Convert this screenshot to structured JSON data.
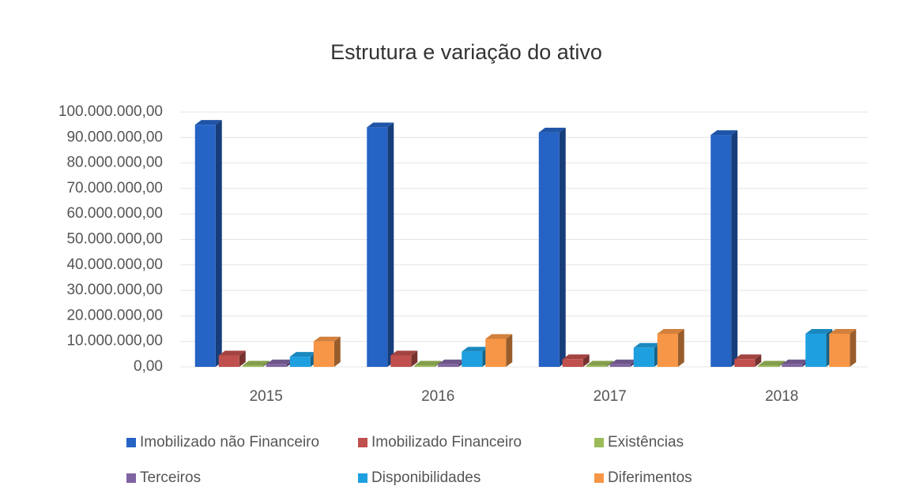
{
  "chart_data": {
    "type": "bar3d",
    "title": "Estrutura e variação do ativo",
    "categories": [
      "2015",
      "2016",
      "2017",
      "2018"
    ],
    "series": [
      {
        "name": "Imobilizado não Financeiro",
        "color": "#2563c4",
        "values": [
          95000000,
          94000000,
          92000000,
          91000000
        ]
      },
      {
        "name": "Imobilizado Financeiro",
        "color": "#c0504d",
        "values": [
          4500000,
          4500000,
          3000000,
          3000000
        ]
      },
      {
        "name": "Existências",
        "color": "#9bbb59",
        "values": [
          500000,
          500000,
          500000,
          500000
        ]
      },
      {
        "name": "Terceiros",
        "color": "#8064a2",
        "values": [
          1000000,
          1000000,
          1000000,
          1000000
        ]
      },
      {
        "name": "Disponibilidades",
        "color": "#1ea0e0",
        "values": [
          4000000,
          6000000,
          7500000,
          13000000
        ]
      },
      {
        "name": "Diferimentos",
        "color": "#f79646",
        "values": [
          10000000,
          11000000,
          13000000,
          13000000
        ]
      }
    ],
    "ylim": [
      0,
      100000000
    ],
    "yticks": [
      {
        "value": 0,
        "label": "0,00"
      },
      {
        "value": 10000000,
        "label": "10.000.000,00"
      },
      {
        "value": 20000000,
        "label": "20.000.000,00"
      },
      {
        "value": 30000000,
        "label": "30.000.000,00"
      },
      {
        "value": 40000000,
        "label": "40.000.000,00"
      },
      {
        "value": 50000000,
        "label": "50.000.000,00"
      },
      {
        "value": 60000000,
        "label": "60.000.000,00"
      },
      {
        "value": 70000000,
        "label": "70.000.000,00"
      },
      {
        "value": 80000000,
        "label": "80.000.000,00"
      },
      {
        "value": 90000000,
        "label": "90.000.000,00"
      },
      {
        "value": 100000000,
        "label": "100.000.000,00"
      }
    ],
    "grid": true
  }
}
